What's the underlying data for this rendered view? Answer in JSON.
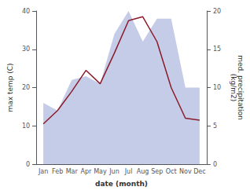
{
  "chart_data": {
    "type": "line",
    "categories": [
      "Jan",
      "Feb",
      "Mar",
      "Apr",
      "May",
      "Jun",
      "Jul",
      "Aug",
      "Sep",
      "Oct",
      "Nov",
      "Dec"
    ],
    "xlabel": "date (month)",
    "ylabel": "max temp (C)",
    "y2label": "med. precipitation\n(kg/m2)",
    "series": [
      {
        "type": "area",
        "axis": "y2",
        "color": "#c5cce8",
        "values": [
          8,
          7,
          11,
          11.5,
          10.5,
          17,
          20,
          16,
          19,
          19,
          10,
          10
        ]
      },
      {
        "type": "line",
        "color": "#8b1a2a",
        "values": [
          10.5,
          14.0,
          19.0,
          24.5,
          21.0,
          29.0,
          37.5,
          38.5,
          32.0,
          20.0,
          12.0,
          11.5
        ]
      }
    ],
    "ylim": [
      0,
      40
    ],
    "yticks": [
      0,
      10,
      20,
      30,
      40
    ],
    "y2lim": [
      0,
      20
    ],
    "y2ticks": [
      0,
      5,
      10,
      15,
      20
    ],
    "grid": false
  }
}
